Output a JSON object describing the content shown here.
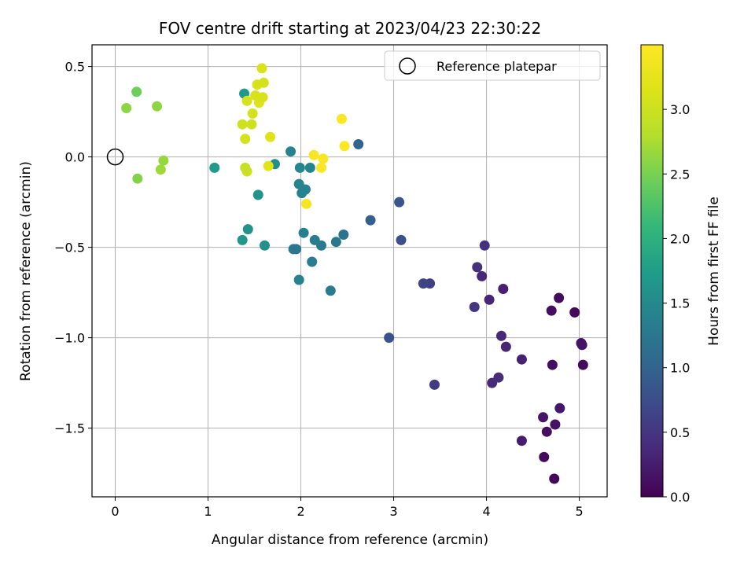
{
  "chart_data": {
    "type": "scatter",
    "title": "FOV centre drift starting at 2023/04/23 22:30:22",
    "xlabel": "Angular distance from reference (arcmin)",
    "ylabel": "Rotation from reference (arcmin)",
    "xlim": [
      -0.25,
      5.3
    ],
    "ylim": [
      -1.88,
      0.62
    ],
    "xticks": [
      0,
      1,
      2,
      3,
      4,
      5
    ],
    "xtick_labels": [
      "0",
      "1",
      "2",
      "3",
      "4",
      "5"
    ],
    "yticks": [
      0.5,
      0.0,
      -0.5,
      -1.0,
      -1.5
    ],
    "ytick_labels": [
      "0.5",
      "0.0",
      "−0.5",
      "−1.0",
      "−1.5"
    ],
    "grid": true,
    "legend": {
      "position": "top-right",
      "entries": [
        {
          "label": "Reference platepar",
          "marker": "open-circle"
        }
      ]
    },
    "reference_point": {
      "x": 0,
      "y": 0
    },
    "colorbar": {
      "label": "Hours from first FF file",
      "colormap": "viridis",
      "range": [
        0.0,
        3.5
      ],
      "ticks": [
        0.0,
        0.5,
        1.0,
        1.5,
        2.0,
        2.5,
        3.0
      ],
      "tick_labels": [
        "0.0",
        "0.5",
        "1.0",
        "1.5",
        "2.0",
        "2.5",
        "3.0"
      ]
    },
    "points": [
      {
        "x": 4.73,
        "y": -1.78,
        "t": 0.05
      },
      {
        "x": 4.62,
        "y": -1.66,
        "t": 0.08
      },
      {
        "x": 4.65,
        "y": -1.52,
        "t": 0.12
      },
      {
        "x": 4.74,
        "y": -1.48,
        "t": 0.15
      },
      {
        "x": 4.61,
        "y": -1.44,
        "t": 0.18
      },
      {
        "x": 4.79,
        "y": -1.39,
        "t": 0.2
      },
      {
        "x": 4.38,
        "y": -1.57,
        "t": 0.25
      },
      {
        "x": 5.04,
        "y": -1.15,
        "t": 0.1
      },
      {
        "x": 4.71,
        "y": -1.15,
        "t": 0.13
      },
      {
        "x": 5.02,
        "y": -1.03,
        "t": 0.15
      },
      {
        "x": 5.03,
        "y": -1.04,
        "t": 0.17
      },
      {
        "x": 4.95,
        "y": -0.86,
        "t": 0.07
      },
      {
        "x": 4.78,
        "y": -0.78,
        "t": 0.1
      },
      {
        "x": 4.7,
        "y": -0.85,
        "t": 0.12
      },
      {
        "x": 4.38,
        "y": -1.12,
        "t": 0.3
      },
      {
        "x": 4.21,
        "y": -1.05,
        "t": 0.32
      },
      {
        "x": 4.16,
        "y": -0.99,
        "t": 0.35
      },
      {
        "x": 4.13,
        "y": -1.22,
        "t": 0.4
      },
      {
        "x": 4.06,
        "y": -1.25,
        "t": 0.38
      },
      {
        "x": 4.18,
        "y": -0.73,
        "t": 0.28
      },
      {
        "x": 4.03,
        "y": -0.79,
        "t": 0.33
      },
      {
        "x": 3.95,
        "y": -0.66,
        "t": 0.36
      },
      {
        "x": 3.9,
        "y": -0.61,
        "t": 0.42
      },
      {
        "x": 3.98,
        "y": -0.49,
        "t": 0.45
      },
      {
        "x": 3.87,
        "y": -0.83,
        "t": 0.5
      },
      {
        "x": 3.44,
        "y": -1.26,
        "t": 0.55
      },
      {
        "x": 3.39,
        "y": -0.7,
        "t": 0.62
      },
      {
        "x": 3.32,
        "y": -0.7,
        "t": 0.65
      },
      {
        "x": 2.95,
        "y": -1.0,
        "t": 0.82
      },
      {
        "x": 3.08,
        "y": -0.46,
        "t": 0.78
      },
      {
        "x": 3.06,
        "y": -0.25,
        "t": 0.85
      },
      {
        "x": 2.75,
        "y": -0.35,
        "t": 0.95
      },
      {
        "x": 2.62,
        "y": 0.07,
        "t": 1.0
      },
      {
        "x": 2.46,
        "y": -0.43,
        "t": 1.2
      },
      {
        "x": 2.38,
        "y": -0.47,
        "t": 1.25
      },
      {
        "x": 2.32,
        "y": -0.74,
        "t": 1.3
      },
      {
        "x": 2.22,
        "y": -0.49,
        "t": 1.28
      },
      {
        "x": 2.15,
        "y": -0.46,
        "t": 1.32
      },
      {
        "x": 2.12,
        "y": -0.58,
        "t": 1.35
      },
      {
        "x": 2.03,
        "y": -0.42,
        "t": 1.36
      },
      {
        "x": 1.98,
        "y": -0.68,
        "t": 1.38
      },
      {
        "x": 1.92,
        "y": -0.51,
        "t": 1.3
      },
      {
        "x": 1.95,
        "y": -0.51,
        "t": 1.22
      },
      {
        "x": 2.05,
        "y": -0.18,
        "t": 1.4
      },
      {
        "x": 2.01,
        "y": -0.2,
        "t": 1.38
      },
      {
        "x": 1.98,
        "y": -0.15,
        "t": 1.42
      },
      {
        "x": 2.1,
        "y": -0.06,
        "t": 1.44
      },
      {
        "x": 1.99,
        "y": -0.06,
        "t": 1.46
      },
      {
        "x": 1.89,
        "y": 0.03,
        "t": 1.4
      },
      {
        "x": 1.72,
        "y": -0.04,
        "t": 1.55
      },
      {
        "x": 1.61,
        "y": -0.49,
        "t": 1.58
      },
      {
        "x": 1.54,
        "y": -0.21,
        "t": 1.62
      },
      {
        "x": 1.43,
        "y": -0.4,
        "t": 1.6
      },
      {
        "x": 1.37,
        "y": -0.46,
        "t": 1.65
      },
      {
        "x": 1.07,
        "y": -0.06,
        "t": 1.7
      },
      {
        "x": 1.39,
        "y": 0.35,
        "t": 1.68
      },
      {
        "x": 0.23,
        "y": 0.36,
        "t": 2.45
      },
      {
        "x": 0.12,
        "y": 0.27,
        "t": 2.6
      },
      {
        "x": 0.45,
        "y": 0.28,
        "t": 2.62
      },
      {
        "x": 0.52,
        "y": -0.02,
        "t": 2.65
      },
      {
        "x": 0.49,
        "y": -0.07,
        "t": 2.68
      },
      {
        "x": 0.24,
        "y": -0.12,
        "t": 2.55
      },
      {
        "x": 1.42,
        "y": -0.08,
        "t": 3.0
      },
      {
        "x": 1.4,
        "y": -0.06,
        "t": 2.95
      },
      {
        "x": 1.4,
        "y": 0.1,
        "t": 3.05
      },
      {
        "x": 1.37,
        "y": 0.18,
        "t": 3.0
      },
      {
        "x": 1.47,
        "y": 0.18,
        "t": 3.02
      },
      {
        "x": 1.42,
        "y": 0.31,
        "t": 3.08
      },
      {
        "x": 1.48,
        "y": 0.24,
        "t": 3.05
      },
      {
        "x": 1.53,
        "y": 0.4,
        "t": 3.1
      },
      {
        "x": 1.6,
        "y": 0.41,
        "t": 3.06
      },
      {
        "x": 1.58,
        "y": 0.49,
        "t": 3.12
      },
      {
        "x": 1.55,
        "y": 0.3,
        "t": 3.15
      },
      {
        "x": 1.59,
        "y": 0.33,
        "t": 3.1
      },
      {
        "x": 1.51,
        "y": 0.34,
        "t": 3.1
      },
      {
        "x": 1.67,
        "y": 0.11,
        "t": 3.18
      },
      {
        "x": 1.65,
        "y": -0.05,
        "t": 3.2
      },
      {
        "x": 2.06,
        "y": -0.26,
        "t": 3.42
      },
      {
        "x": 2.14,
        "y": 0.01,
        "t": 3.44
      },
      {
        "x": 2.24,
        "y": -0.01,
        "t": 3.45
      },
      {
        "x": 2.22,
        "y": -0.06,
        "t": 3.46
      },
      {
        "x": 2.44,
        "y": 0.21,
        "t": 3.47
      },
      {
        "x": 2.47,
        "y": 0.06,
        "t": 3.48
      }
    ]
  }
}
